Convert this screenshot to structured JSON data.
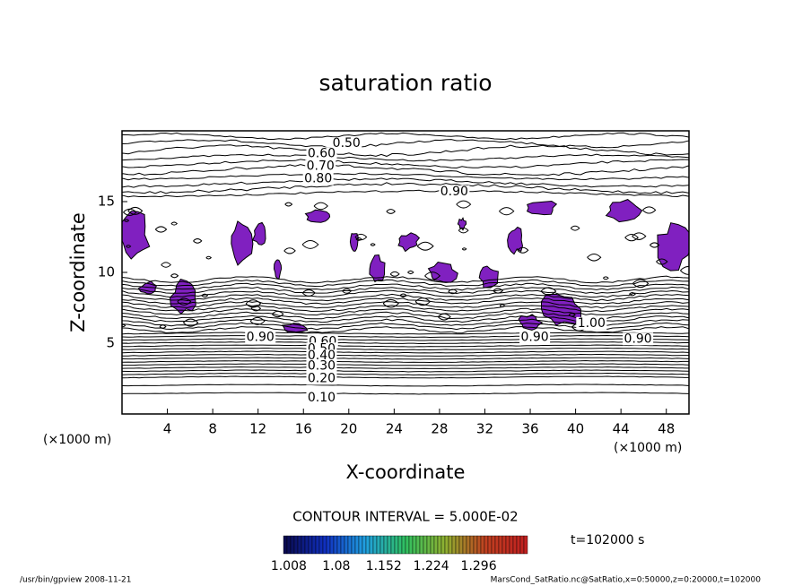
{
  "chart_data": {
    "type": "contour",
    "title": "saturation ratio",
    "x_label": "X-coordinate",
    "y_label": "Z-coordinate",
    "x_unit_label": "(×1000 m)",
    "y_unit_label": "(×1000 m)",
    "xlim": [
      0,
      50
    ],
    "ylim": [
      0,
      20
    ],
    "xticks": [
      4,
      8,
      12,
      16,
      20,
      24,
      28,
      32,
      36,
      40,
      44,
      48
    ],
    "yticks": [
      5,
      10,
      15
    ],
    "contour_labels": [
      {
        "label": "0.50",
        "x": 19.8,
        "z": 19.1
      },
      {
        "label": "0.60",
        "x": 17.6,
        "z": 18.4
      },
      {
        "label": "0.70",
        "x": 17.5,
        "z": 17.5
      },
      {
        "label": "0.80",
        "x": 17.3,
        "z": 16.6
      },
      {
        "label": "0.90",
        "x": 29.3,
        "z": 15.7
      },
      {
        "label": "0.90",
        "x": 12.2,
        "z": 5.4
      },
      {
        "label": "0.90",
        "x": 36.4,
        "z": 5.4
      },
      {
        "label": "0.90",
        "x": 45.5,
        "z": 5.3
      },
      {
        "label": "1.00",
        "x": 41.4,
        "z": 6.4
      },
      {
        "label": "0.60",
        "x": 17.7,
        "z": 5.1
      },
      {
        "label": "0.50",
        "x": 17.6,
        "z": 4.6
      },
      {
        "label": "0.40",
        "x": 17.6,
        "z": 4.1
      },
      {
        "label": "0.30",
        "x": 17.6,
        "z": 3.4
      },
      {
        "label": "0.20",
        "x": 17.6,
        "z": 2.5
      },
      {
        "label": "0.10",
        "x": 17.6,
        "z": 1.15
      }
    ],
    "contour_interval": "CONTOUR INTERVAL = 5.000E-02",
    "colorbar": {
      "lim": [
        1.0,
        1.37
      ],
      "ticks": [
        1.008,
        1.08,
        1.152,
        1.224,
        1.296
      ],
      "colors": [
        "#0a0a50",
        "#1030c0",
        "#20a0e0",
        "#30c060",
        "#90b030",
        "#c04020",
        "#c02020"
      ]
    },
    "fill_color": "#8020c0",
    "time_label": "t=102000 s",
    "footer_left": "/usr/bin/gpview  2008-11-21",
    "footer_right": "MarsCond_SatRatio.nc@SatRatio,x=0:50000,z=0:20000,t=102000"
  }
}
